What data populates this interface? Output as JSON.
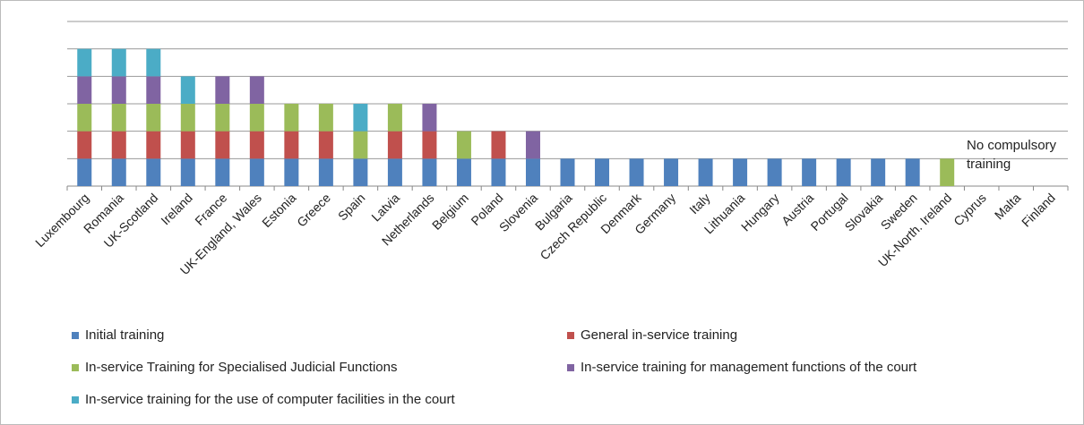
{
  "chart_data": {
    "type": "bar",
    "stacked": true,
    "annotation": "No compulsory training",
    "categories": [
      "Luxembourg",
      "Romania",
      "UK-Scotland",
      "Ireland",
      "France",
      "UK-England,  Wales",
      "Estonia",
      "Greece",
      "Spain",
      "Latvia",
      "Netherlands",
      "Belgium",
      "Poland",
      "Slovenia",
      "Bulgaria",
      "Czech Republic",
      "Denmark",
      "Germany",
      "Italy",
      "Lithuania",
      "Hungary",
      "Austria",
      "Portugal",
      "Slovakia",
      "Sweden",
      "UK-North. Ireland",
      "Cyprus",
      "Malta",
      "Finland"
    ],
    "series": [
      {
        "name": "Initial training",
        "color": "#4f81bd",
        "values": [
          1,
          1,
          1,
          1,
          1,
          1,
          1,
          1,
          1,
          1,
          1,
          1,
          1,
          1,
          1,
          1,
          1,
          1,
          1,
          1,
          1,
          1,
          1,
          1,
          1,
          0,
          0,
          0,
          0
        ]
      },
      {
        "name": "General in-service training",
        "color": "#c0504d",
        "values": [
          1,
          1,
          1,
          1,
          1,
          1,
          1,
          1,
          0,
          1,
          1,
          0,
          1,
          0,
          0,
          0,
          0,
          0,
          0,
          0,
          0,
          0,
          0,
          0,
          0,
          0,
          0,
          0,
          0
        ]
      },
      {
        "name": "In-service Training for Specialised Judicial Functions",
        "color": "#9bbb59",
        "values": [
          1,
          1,
          1,
          1,
          1,
          1,
          1,
          1,
          1,
          1,
          0,
          1,
          0,
          0,
          0,
          0,
          0,
          0,
          0,
          0,
          0,
          0,
          0,
          0,
          0,
          1,
          0,
          0,
          0
        ]
      },
      {
        "name": "In-service training for management functions of the court",
        "color": "#8064a2",
        "values": [
          1,
          1,
          1,
          0,
          1,
          1,
          0,
          0,
          0,
          0,
          1,
          0,
          0,
          1,
          0,
          0,
          0,
          0,
          0,
          0,
          0,
          0,
          0,
          0,
          0,
          0,
          0,
          0,
          0
        ]
      },
      {
        "name": "In-service training for the use of computer facilities in the court",
        "color": "#4bacc6",
        "values": [
          1,
          1,
          1,
          1,
          0,
          0,
          0,
          0,
          1,
          0,
          0,
          0,
          0,
          0,
          0,
          0,
          0,
          0,
          0,
          0,
          0,
          0,
          0,
          0,
          0,
          0,
          0,
          0,
          0
        ]
      }
    ],
    "ylim": [
      0,
      6
    ],
    "yticks": [
      0,
      1,
      2,
      3,
      4,
      5,
      6
    ],
    "grid": true,
    "legend": "bottom"
  }
}
